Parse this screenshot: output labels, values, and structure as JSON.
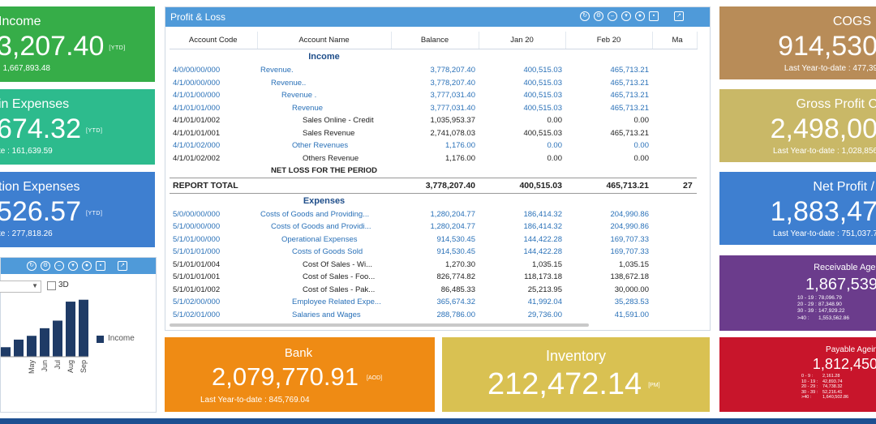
{
  "tiles": {
    "income": {
      "title": "Income",
      "value": "3,207.40",
      "tag": "[YTD]",
      "sub": ": 1,667,893.48",
      "color": "#36ad48"
    },
    "admin": {
      "title": "in Expenses",
      "value": "674.32",
      "tag": "[YTD]",
      "sub": "te : 161,639.59",
      "color": "#2dbb8d"
    },
    "operation": {
      "title": "tion Expenses",
      "value": "526.57",
      "tag": "[YTD]",
      "sub": "te : 277,818.26",
      "color": "#3e7fd0"
    },
    "cogs": {
      "title": "COGS",
      "value": "914,530",
      "sub": "Last Year-to-date : 477,39",
      "color": "#b88c58"
    },
    "gross": {
      "title": "Gross Profit C",
      "value": "2,498,00",
      "sub": "Last Year-to-date : 1,028,856",
      "color": "#c9b867"
    },
    "net": {
      "title": "Net Profit /",
      "value": "1,883,47",
      "sub": "Last Year-to-date : 751,037.7",
      "color": "#3e7fd0"
    },
    "bank": {
      "title": "Bank",
      "value": "2,079,770.91",
      "tag": "[AOD]",
      "sub": "Last Year-to-date : 845,769.04",
      "color": "#ef8b14"
    },
    "inventory": {
      "title": "Inventory",
      "value": "212,472.14",
      "tag": "[PM]",
      "color": "#d9c152"
    }
  },
  "receivable": {
    "title": "Receivable Agei",
    "value": "1,867,539",
    "color": "#6b3c8c",
    "rows": [
      {
        "k": "10 - 19 :",
        "v": "78,096.79"
      },
      {
        "k": "20 - 29 :",
        "v": "87,348.90"
      },
      {
        "k": "30 - 39 :",
        "v": "147,929.22"
      },
      {
        "k": ">40 :",
        "v": "1,553,562.86"
      }
    ]
  },
  "payable": {
    "title": "Payable Agein",
    "value": "1,812,450",
    "color": "#c8152b",
    "rows": [
      {
        "k": "0 - 9 :",
        "v": "2,161.28"
      },
      {
        "k": "10 - 19 :",
        "v": "42,893.74"
      },
      {
        "k": "20 - 29 :",
        "v": "74,738.32"
      },
      {
        "k": "30 - 39 :",
        "v": "52,216.41"
      },
      {
        "k": ">40 :",
        "v": "1,640,502.86"
      }
    ]
  },
  "pnl": {
    "title": "Profit & Loss",
    "columns": [
      "Account Code",
      "Account Name",
      "Balance",
      "Jan 20",
      "Feb 20",
      "Ma"
    ],
    "rows": [
      {
        "type": "sect",
        "name": "Income"
      },
      {
        "type": "lk",
        "code": "4/0/00/00/000",
        "name": "Revenue.",
        "bal": "3,778,207.40",
        "jan": "400,515.03",
        "feb": "465,713.21",
        "ind": 0
      },
      {
        "type": "lk",
        "code": "4/1/00/00/000",
        "name": "Revenue..",
        "bal": "3,778,207.40",
        "jan": "400,515.03",
        "feb": "465,713.21",
        "ind": 1
      },
      {
        "type": "lk",
        "code": "4/1/01/00/000",
        "name": "Revenue .",
        "bal": "3,777,031.40",
        "jan": "400,515.03",
        "feb": "465,713.21",
        "ind": 2
      },
      {
        "type": "lk",
        "code": "4/1/01/01/000",
        "name": "Revenue",
        "bal": "3,777,031.40",
        "jan": "400,515.03",
        "feb": "465,713.21",
        "ind": 3
      },
      {
        "type": "n",
        "code": "4/1/01/01/002",
        "name": "Sales Online - Credit",
        "bal": "1,035,953.37",
        "jan": "0.00",
        "feb": "0.00",
        "ind": 4
      },
      {
        "type": "n",
        "code": "4/1/01/01/001",
        "name": "Sales Revenue",
        "bal": "2,741,078.03",
        "jan": "400,515.03",
        "feb": "465,713.21",
        "ind": 4
      },
      {
        "type": "lk",
        "code": "4/1/01/02/000",
        "name": "Other Revenues",
        "bal": "1,176.00",
        "jan": "0.00",
        "feb": "0.00",
        "ind": 3
      },
      {
        "type": "n",
        "code": "4/1/01/02/002",
        "name": "Others Revenue",
        "bal": "1,176.00",
        "jan": "0.00",
        "feb": "0.00",
        "ind": 4
      },
      {
        "type": "bold",
        "code": "",
        "name": "NET LOSS FOR THE PERIOD",
        "bal": "",
        "jan": "",
        "feb": "",
        "ind": 0
      },
      {
        "type": "tot",
        "code": "REPORT TOTAL",
        "name": "",
        "bal": "3,778,207.40",
        "jan": "400,515.03",
        "feb": "465,713.21",
        "ma": "27"
      },
      {
        "type": "sect",
        "name": "Expenses"
      },
      {
        "type": "lk",
        "code": "5/0/00/00/000",
        "name": "Costs of Goods and Providing...",
        "bal": "1,280,204.77",
        "jan": "186,414.32",
        "feb": "204,990.86",
        "ind": 0
      },
      {
        "type": "lk",
        "code": "5/1/00/00/000",
        "name": "Costs of Goods and Providi...",
        "bal": "1,280,204.77",
        "jan": "186,414.32",
        "feb": "204,990.86",
        "ind": 1
      },
      {
        "type": "lk",
        "code": "5/1/01/00/000",
        "name": "Operational Expenses",
        "bal": "914,530.45",
        "jan": "144,422.28",
        "feb": "169,707.33",
        "ind": 2
      },
      {
        "type": "lk",
        "code": "5/1/01/01/000",
        "name": "Costs of Goods Sold",
        "bal": "914,530.45",
        "jan": "144,422.28",
        "feb": "169,707.33",
        "ind": 3
      },
      {
        "type": "n",
        "code": "5/1/01/01/004",
        "name": "Cost Of Sales - Wi...",
        "bal": "1,270.30",
        "jan": "1,035.15",
        "feb": "1,035.15",
        "ind": 4
      },
      {
        "type": "n",
        "code": "5/1/01/01/001",
        "name": "Cost of Sales - Foo...",
        "bal": "826,774.82",
        "jan": "118,173.18",
        "feb": "138,672.18",
        "ind": 4
      },
      {
        "type": "n",
        "code": "5/1/01/01/002",
        "name": "Cost of Sales - Pak...",
        "bal": "86,485.33",
        "jan": "25,213.95",
        "feb": "30,000.00",
        "ind": 4
      },
      {
        "type": "lk",
        "code": "5/1/02/00/000",
        "name": "Employee Related Expe...",
        "bal": "365,674.32",
        "jan": "41,992.04",
        "feb": "35,283.53",
        "ind": 3
      },
      {
        "type": "lk",
        "code": "5/1/02/01/000",
        "name": "Salaries and Wages",
        "bal": "288,786.00",
        "jan": "29,736.00",
        "feb": "41,591.00",
        "ind": 3
      }
    ]
  },
  "chart": {
    "checkbox_label": "3D",
    "legend": "Income",
    "bar_color": "#1f3b66",
    "chart_data": {
      "type": "bar",
      "categories": [
        "",
        "",
        "May",
        "Jun",
        "Jul",
        "Aug",
        "Sep"
      ],
      "values": [
        10,
        18,
        22,
        30,
        38,
        58,
        60
      ],
      "series": [
        {
          "name": "Income"
        }
      ],
      "ylim": [
        0,
        70
      ]
    }
  }
}
